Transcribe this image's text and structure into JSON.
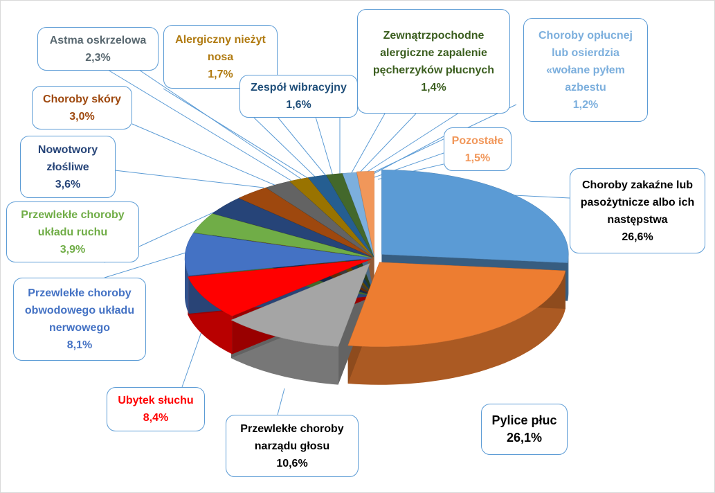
{
  "chart_data": {
    "type": "pie",
    "style": "3d-exploded",
    "title": "",
    "slices": [
      {
        "label": "Choroby zakaźne lub pasożytnicze albo ich następstwa",
        "value": 26.6,
        "pct": "26,6%",
        "color": "#5B9BD5",
        "text_color": "#000000"
      },
      {
        "label": "Pylice płuc",
        "value": 26.1,
        "pct": "26,1%",
        "color": "#ED7D31",
        "text_color": "#000000"
      },
      {
        "label": "Przewlekłe choroby narządu głosu",
        "value": 10.6,
        "pct": "10,6%",
        "color": "#A5A5A5",
        "text_color": "#000000"
      },
      {
        "label": "Ubytek słuchu",
        "value": 8.4,
        "pct": "8,4%",
        "color": "#FF0000",
        "text_color": "#FF0000"
      },
      {
        "label": "Przewlekłe choroby obwodowego układu nerwowego",
        "value": 8.1,
        "pct": "8,1%",
        "color": "#4472C4",
        "text_color": "#4472C4"
      },
      {
        "label": "Przewlekłe choroby układu ruchu",
        "value": 3.9,
        "pct": "3,9%",
        "color": "#70AD47",
        "text_color": "#70AD47"
      },
      {
        "label": "Nowotwory złośliwe",
        "value": 3.6,
        "pct": "3,6%",
        "color": "#264478",
        "text_color": "#264478"
      },
      {
        "label": "Choroby skóry",
        "value": 3.0,
        "pct": "3,0%",
        "color": "#9E480E",
        "text_color": "#9E480E"
      },
      {
        "label": "Astma oskrzelowa",
        "value": 2.3,
        "pct": "2,3%",
        "color": "#636363",
        "text_color": "#596870"
      },
      {
        "label": "Alergiczny nieżyt nosa",
        "value": 1.7,
        "pct": "1,7%",
        "color": "#997300",
        "text_color": "#B07A10"
      },
      {
        "label": "Zespół wibracyjny",
        "value": 1.6,
        "pct": "1,6%",
        "color": "#255E91",
        "text_color": "#1F4E79"
      },
      {
        "label": "Zewnątrzpochodne alergiczne zapalenie pęcherzyków płucnych",
        "value": 1.4,
        "pct": "1,4%",
        "color": "#43682B",
        "text_color": "#3B5E1F"
      },
      {
        "label": "Choroby opłucnej lub osierdzia «wołane pyłem azbestu",
        "value": 1.2,
        "pct": "1,2%",
        "color": "#7CAFDD",
        "text_color": "#7CAFDD"
      },
      {
        "label": "Pozostałe",
        "value": 1.5,
        "pct": "1,5%",
        "color": "#F1975A",
        "text_color": "#F1975A"
      }
    ],
    "legend": "none",
    "border_color": "#5B9BD5"
  }
}
